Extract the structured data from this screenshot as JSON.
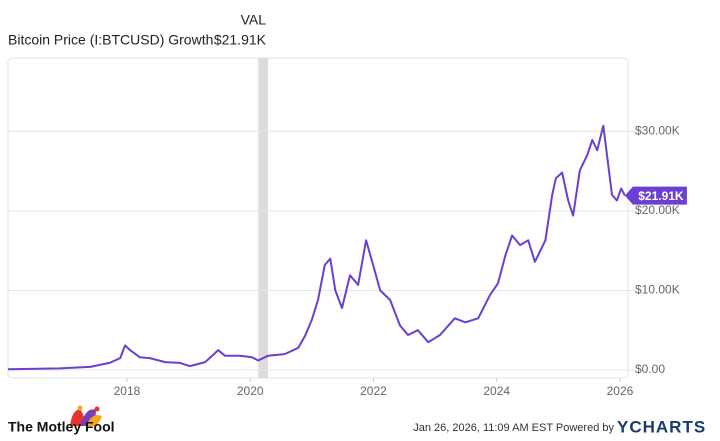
{
  "chart_data": {
    "type": "line",
    "header_label": "VAL",
    "header_value": "$21.91K",
    "series": [
      {
        "name": "Bitcoin Price (I:BTCUSD) Growth",
        "color": "#6a3fd1",
        "x": [
          2016.07,
          2016.91,
          2017.4,
          2017.72,
          2017.89,
          2017.97,
          2018.05,
          2018.21,
          2018.37,
          2018.62,
          2018.86,
          2019.02,
          2019.27,
          2019.48,
          2019.59,
          2019.83,
          2020.03,
          2020.13,
          2020.29,
          2020.56,
          2020.78,
          2020.89,
          2021.0,
          2021.1,
          2021.21,
          2021.3,
          2021.38,
          2021.49,
          2021.62,
          2021.75,
          2021.88,
          2021.98,
          2022.11,
          2022.27,
          2022.43,
          2022.56,
          2022.72,
          2022.89,
          2023.08,
          2023.32,
          2023.49,
          2023.7,
          2023.89,
          2024.02,
          2024.14,
          2024.25,
          2024.38,
          2024.51,
          2024.62,
          2024.79,
          2024.9,
          2024.96,
          2025.06,
          2025.16,
          2025.24,
          2025.35,
          2025.47,
          2025.55,
          2025.63,
          2025.73,
          2025.79,
          2025.87,
          2025.95,
          2026.02,
          2026.08
        ],
        "values": [
          100,
          200,
          400,
          900,
          1500,
          3100,
          2500,
          1600,
          1500,
          1000,
          900,
          500,
          1000,
          2500,
          1800,
          1800,
          1600,
          1200,
          1800,
          2000,
          2800,
          4300,
          6300,
          8800,
          13200,
          14000,
          10000,
          7800,
          11900,
          10700,
          16300,
          13600,
          10000,
          8800,
          5600,
          4400,
          5000,
          3500,
          4400,
          6500,
          6000,
          6500,
          9400,
          10900,
          14400,
          16900,
          15700,
          16300,
          13600,
          16300,
          22000,
          24100,
          24800,
          21300,
          19400,
          25100,
          27000,
          28900,
          27600,
          30700,
          27000,
          22000,
          21300,
          22800,
          21910
        ],
        "last_value_label": "$21.91K"
      }
    ],
    "xlim": [
      2016.07,
      2026.13
    ],
    "xticks": [
      2018,
      2020,
      2022,
      2024,
      2026
    ],
    "ylim": [
      -1000,
      39200
    ],
    "yticks": [
      {
        "value": 0,
        "label": "$0.00"
      },
      {
        "value": 10000,
        "label": "$10.00K"
      },
      {
        "value": 20000,
        "label": "$20.00K"
      },
      {
        "value": 30000,
        "label": "$30.00K"
      }
    ],
    "grid": true,
    "shaded_range": [
      2020.13,
      2020.29
    ],
    "footer_brand": "The Motley Fool",
    "footer_timestamp": "Jan 26, 2026, 11:09 AM EST Powered by",
    "footer_source": "YCHARTS"
  }
}
